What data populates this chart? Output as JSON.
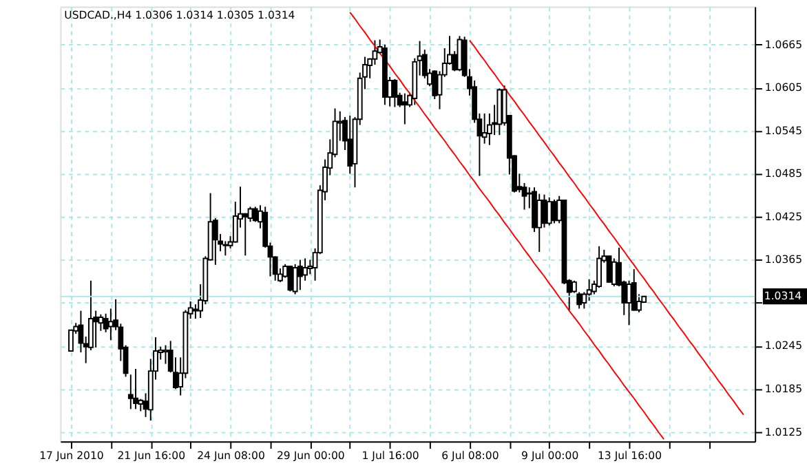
{
  "chart_data": {
    "type": "candlestick",
    "title": "USDCAD.,H4 1.0306 1.0314 1.0305 1.0314",
    "categories": [
      "17 Jun 2010",
      null,
      null,
      null,
      null,
      null,
      null,
      null,
      null,
      null,
      null,
      null,
      null,
      null,
      null,
      null,
      "21 Jun 16:00",
      null,
      null,
      null,
      null,
      null,
      null,
      null,
      null,
      null,
      null,
      null,
      null,
      null,
      null,
      null,
      "24 Jun 08:00",
      null,
      null,
      null,
      null,
      null,
      null,
      null,
      null,
      null,
      null,
      null,
      null,
      null,
      null,
      null,
      "29 Jun 00:00",
      null,
      null,
      null,
      null,
      null,
      null,
      null,
      null,
      null,
      null,
      null,
      null,
      null,
      null,
      null,
      "1 Jul 16:00",
      null,
      null,
      null,
      null,
      null,
      null,
      null,
      null,
      null,
      null,
      null,
      null,
      null,
      null,
      null,
      "6 Jul 08:00",
      null,
      null,
      null,
      null,
      null,
      null,
      null,
      null,
      null,
      null,
      null,
      null,
      null,
      null,
      null,
      "9 Jul 00:00",
      null,
      null,
      null,
      null,
      null,
      null,
      null,
      null,
      null,
      null,
      null,
      null,
      null,
      null,
      null,
      "13 Jul 16:00",
      null,
      null,
      null,
      null,
      null,
      null,
      null,
      null,
      null,
      null,
      null,
      null,
      null,
      null,
      null,
      null,
      null,
      null,
      null,
      null,
      null,
      null,
      null
    ],
    "ohlc": [
      [
        1.0238,
        1.0267,
        1.0238,
        1.0267
      ],
      [
        1.0266,
        1.0277,
        1.0262,
        1.0272
      ],
      [
        1.0274,
        1.0294,
        1.0236,
        1.0249
      ],
      [
        1.0248,
        1.0258,
        1.0221,
        1.0244
      ],
      [
        1.0243,
        1.0336,
        1.0239,
        1.0283
      ],
      [
        1.0285,
        1.0294,
        1.0243,
        1.0279
      ],
      [
        1.0277,
        1.0289,
        1.0266,
        1.0285
      ],
      [
        1.0283,
        1.029,
        1.0264,
        1.0269
      ],
      [
        1.0272,
        1.0297,
        1.0253,
        1.0279
      ],
      [
        1.0281,
        1.031,
        1.0267,
        1.0272
      ],
      [
        1.0271,
        1.0276,
        1.0224,
        1.0241
      ],
      [
        1.0243,
        1.0246,
        1.0202,
        1.0207
      ],
      [
        1.0177,
        1.0205,
        1.0157,
        1.0172
      ],
      [
        1.0172,
        1.0213,
        1.0157,
        1.0165
      ],
      [
        1.0164,
        1.0171,
        1.0154,
        1.0169
      ],
      [
        1.0168,
        1.0179,
        1.0146,
        1.0157
      ],
      [
        1.0156,
        1.0227,
        1.0141,
        1.021
      ],
      [
        1.021,
        1.0257,
        1.0198,
        1.0238
      ],
      [
        1.0236,
        1.0244,
        1.0226,
        1.0239
      ],
      [
        1.0237,
        1.0246,
        1.022,
        1.0239
      ],
      [
        1.0239,
        1.0252,
        1.0208,
        1.021
      ],
      [
        1.0208,
        1.0229,
        1.0185,
        1.0187
      ],
      [
        1.0188,
        1.0229,
        1.0176,
        1.0207
      ],
      [
        1.0207,
        1.0295,
        1.02,
        1.0292
      ],
      [
        1.029,
        1.0307,
        1.0283,
        1.0298
      ],
      [
        1.0294,
        1.0303,
        1.0283,
        1.0296
      ],
      [
        1.0294,
        1.0331,
        1.0284,
        1.0309
      ],
      [
        1.0308,
        1.037,
        1.0303,
        1.0367
      ],
      [
        1.0365,
        1.0458,
        1.0364,
        1.0418
      ],
      [
        1.042,
        1.0423,
        1.0358,
        1.0393
      ],
      [
        1.0391,
        1.0401,
        1.0377,
        1.0387
      ],
      [
        1.0386,
        1.0391,
        1.0371,
        1.0385
      ],
      [
        1.0385,
        1.0398,
        1.0381,
        1.039
      ],
      [
        1.039,
        1.0446,
        1.0389,
        1.0426
      ],
      [
        1.0422,
        1.0467,
        1.041,
        1.0429
      ],
      [
        1.0429,
        1.043,
        1.0371,
        1.0425
      ],
      [
        1.0423,
        1.0439,
        1.0418,
        1.0436
      ],
      [
        1.0436,
        1.0439,
        1.0418,
        1.042
      ],
      [
        1.0418,
        1.0441,
        1.0409,
        1.0433
      ],
      [
        1.0431,
        1.0439,
        1.0382,
        1.0384
      ],
      [
        1.0384,
        1.0389,
        1.0342,
        1.0369
      ],
      [
        1.0369,
        1.037,
        1.0336,
        1.0345
      ],
      [
        1.0336,
        1.0353,
        1.0334,
        1.0345
      ],
      [
        1.0342,
        1.0359,
        1.034,
        1.0356
      ],
      [
        1.0356,
        1.0357,
        1.0321,
        1.0323
      ],
      [
        1.0321,
        1.0359,
        1.0317,
        1.0354
      ],
      [
        1.0356,
        1.0365,
        1.0323,
        1.0342
      ],
      [
        1.0344,
        1.0367,
        1.0336,
        1.0354
      ],
      [
        1.0353,
        1.0365,
        1.0345,
        1.0356
      ],
      [
        1.0354,
        1.0381,
        1.0336,
        1.0375
      ],
      [
        1.0375,
        1.0469,
        1.0373,
        1.0462
      ],
      [
        1.046,
        1.0505,
        1.0448,
        1.0494
      ],
      [
        1.0493,
        1.0533,
        1.0483,
        1.0514
      ],
      [
        1.0512,
        1.0576,
        1.0508,
        1.0558
      ],
      [
        1.0556,
        1.0572,
        1.0531,
        1.0558
      ],
      [
        1.0559,
        1.0564,
        1.0518,
        1.0531
      ],
      [
        1.0533,
        1.0566,
        1.0485,
        1.0496
      ],
      [
        1.0499,
        1.0564,
        1.0466,
        1.0561
      ],
      [
        1.0561,
        1.0626,
        1.0553,
        1.0618
      ],
      [
        1.062,
        1.0648,
        1.0603,
        1.0637
      ],
      [
        1.0636,
        1.0646,
        1.0618,
        1.0645
      ],
      [
        1.0645,
        1.0671,
        1.0637,
        1.0656
      ],
      [
        1.0654,
        1.0672,
        1.0653,
        1.0662
      ],
      [
        1.066,
        1.0665,
        1.0581,
        1.0592
      ],
      [
        1.0592,
        1.062,
        1.0579,
        1.0615
      ],
      [
        1.0615,
        1.0617,
        1.0578,
        1.0592
      ],
      [
        1.0594,
        1.0598,
        1.0578,
        1.0581
      ],
      [
        1.0585,
        1.0597,
        1.0554,
        1.0581
      ],
      [
        1.0581,
        1.0598,
        1.0578,
        1.0594
      ],
      [
        1.059,
        1.0646,
        1.0581,
        1.0641
      ],
      [
        1.0643,
        1.067,
        1.0622,
        1.0649
      ],
      [
        1.0651,
        1.0658,
        1.0618,
        1.0622
      ],
      [
        1.061,
        1.0631,
        1.0607,
        1.0625
      ],
      [
        1.0628,
        1.0629,
        1.0589,
        1.0594
      ],
      [
        1.0595,
        1.0628,
        1.0575,
        1.0623
      ],
      [
        1.0623,
        1.066,
        1.062,
        1.0639
      ],
      [
        1.0639,
        1.0677,
        1.0637,
        1.0651
      ],
      [
        1.0651,
        1.0656,
        1.0628,
        1.063
      ],
      [
        1.063,
        1.0677,
        1.0628,
        1.0672
      ],
      [
        1.0671,
        1.0676,
        1.062,
        1.0622
      ],
      [
        1.062,
        1.0631,
        1.0594,
        1.0604
      ],
      [
        1.0606,
        1.0615,
        1.0556,
        1.0561
      ],
      [
        1.0561,
        1.0569,
        1.0482,
        1.0538
      ],
      [
        1.0536,
        1.0569,
        1.0527,
        1.0542
      ],
      [
        1.0541,
        1.0569,
        1.0525,
        1.0553
      ],
      [
        1.0554,
        1.0581,
        1.0539,
        1.0556
      ],
      [
        1.0554,
        1.0604,
        1.0539,
        1.0602
      ],
      [
        1.0556,
        1.0608,
        1.0552,
        1.0602
      ],
      [
        1.0566,
        1.0567,
        1.0484,
        1.0507
      ],
      [
        1.051,
        1.0511,
        1.0459,
        1.0461
      ],
      [
        1.0467,
        1.0485,
        1.0459,
        1.0463
      ],
      [
        1.0466,
        1.0472,
        1.0435,
        1.0454
      ],
      [
        1.0458,
        1.0466,
        1.0437,
        1.0457
      ],
      [
        1.046,
        1.0466,
        1.0404,
        1.041
      ],
      [
        1.041,
        1.0457,
        1.0376,
        1.0448
      ],
      [
        1.0448,
        1.0456,
        1.041,
        1.0416
      ],
      [
        1.0416,
        1.0452,
        1.0413,
        1.0446
      ],
      [
        1.0446,
        1.0449,
        1.0416,
        1.042
      ],
      [
        1.042,
        1.0454,
        1.0416,
        1.0448
      ],
      [
        1.0448,
        1.0449,
        1.0331,
        1.0333
      ],
      [
        1.0336,
        1.0338,
        1.0294,
        1.032
      ],
      [
        1.0321,
        1.0336,
        1.0319,
        1.0334
      ],
      [
        1.0317,
        1.032,
        1.0297,
        1.0303
      ],
      [
        1.0305,
        1.032,
        1.0297,
        1.0317
      ],
      [
        1.0317,
        1.0338,
        1.0308,
        1.0323
      ],
      [
        1.0321,
        1.0336,
        1.0317,
        1.0331
      ],
      [
        1.0328,
        1.0384,
        1.0326,
        1.0367
      ],
      [
        1.0364,
        1.0379,
        1.0361,
        1.037
      ],
      [
        1.037,
        1.0371,
        1.0333,
        1.0334
      ],
      [
        1.0331,
        1.0367,
        1.0328,
        1.0362
      ],
      [
        1.0361,
        1.0382,
        1.0328,
        1.033
      ],
      [
        1.0334,
        1.0336,
        1.0288,
        1.0305
      ],
      [
        1.0305,
        1.0336,
        1.0274,
        1.0331
      ],
      [
        1.0333,
        1.0352,
        1.0294,
        1.0295
      ],
      [
        1.0295,
        1.0317,
        1.0292,
        1.0307
      ],
      [
        1.0306,
        1.0314,
        1.0305,
        1.0314
      ],
      null,
      null,
      null,
      null,
      null,
      null,
      null,
      null,
      null,
      null,
      null,
      null,
      null,
      null,
      null,
      null,
      null,
      null,
      null,
      null
    ],
    "series": [
      {
        "type": "line",
        "color": "#ff0000",
        "values": [
          null,
          null,
          null,
          null,
          null,
          null,
          null,
          null,
          null,
          null,
          null,
          null,
          null,
          null,
          null,
          null,
          null,
          null,
          null,
          null,
          null,
          null,
          null,
          null,
          null,
          null,
          null,
          null,
          null,
          null,
          null,
          null,
          null,
          null,
          null,
          null,
          null,
          null,
          null,
          null,
          null,
          null,
          null,
          null,
          null,
          null,
          null,
          null,
          null,
          null,
          null,
          null,
          null,
          null,
          null,
          null,
          1.071,
          1.0701,
          1.0691,
          1.0682,
          1.0672,
          1.0663,
          1.0653,
          1.0644,
          1.0635,
          1.0625,
          1.0616,
          1.0606,
          1.0597,
          1.0587,
          1.0578,
          1.0568,
          1.0559,
          1.0549,
          1.054,
          1.0531,
          1.0521,
          1.0512,
          1.0502,
          1.0493,
          1.0483,
          1.0474,
          1.0464,
          1.0455,
          1.0446,
          1.0436,
          1.0427,
          1.0417,
          1.0408,
          1.0398,
          1.0389,
          1.0379,
          1.037,
          1.036,
          1.0351,
          1.0342,
          1.0332,
          1.0323,
          1.0313,
          1.0304,
          1.0294,
          1.0285,
          1.0276,
          1.0266,
          1.0257,
          1.0247,
          1.0238,
          1.0228,
          1.0219,
          1.0209,
          1.02,
          1.019,
          1.0181,
          1.0172,
          1.0162,
          1.0153,
          1.0143,
          1.0134,
          1.0124,
          1.0115,
          null,
          null,
          null,
          null,
          null,
          null,
          null,
          null,
          null,
          null,
          null,
          null,
          null,
          null,
          null,
          null
        ]
      },
      {
        "type": "line",
        "color": "#ff0000",
        "values": [
          null,
          null,
          null,
          null,
          null,
          null,
          null,
          null,
          null,
          null,
          null,
          null,
          null,
          null,
          null,
          null,
          null,
          null,
          null,
          null,
          null,
          null,
          null,
          null,
          null,
          null,
          null,
          null,
          null,
          null,
          null,
          null,
          null,
          null,
          null,
          null,
          null,
          null,
          null,
          null,
          null,
          null,
          null,
          null,
          null,
          null,
          null,
          null,
          null,
          null,
          null,
          null,
          null,
          null,
          null,
          null,
          null,
          null,
          null,
          null,
          null,
          null,
          null,
          null,
          null,
          null,
          null,
          null,
          null,
          null,
          null,
          null,
          null,
          null,
          null,
          null,
          null,
          null,
          null,
          null,
          1.0671,
          1.0662,
          1.0652,
          1.0643,
          1.0633,
          1.0624,
          1.0614,
          1.0605,
          1.0595,
          1.0586,
          1.0576,
          1.0567,
          1.0557,
          1.0548,
          1.0538,
          1.0529,
          1.0519,
          1.051,
          1.05,
          1.0491,
          1.0481,
          1.0472,
          1.0462,
          1.0453,
          1.0443,
          1.0434,
          1.0424,
          1.0415,
          1.0405,
          1.0396,
          1.0386,
          1.0377,
          1.0367,
          1.0358,
          1.0348,
          1.0339,
          1.0329,
          1.032,
          1.031,
          1.0301,
          1.0291,
          1.0282,
          1.0272,
          1.0263,
          1.0253,
          1.0244,
          1.0234,
          1.0225,
          1.0215,
          1.0206,
          1.0196,
          1.0187,
          1.0177,
          1.0168,
          1.0158,
          1.0149
        ]
      }
    ],
    "ylim": [
      1.0112,
      1.0718
    ],
    "yticks": [
      1.0125,
      1.0185,
      1.0245,
      {
        "value": 1.0305,
        "label": null
      },
      1.0365,
      1.0425,
      1.0485,
      1.0545,
      1.0605,
      1.0665
    ],
    "grid": true,
    "ref_lines": [
      {
        "axis": "y",
        "value": 1.0314,
        "label": "1.0314",
        "color": "#a8e8e8"
      }
    ]
  }
}
